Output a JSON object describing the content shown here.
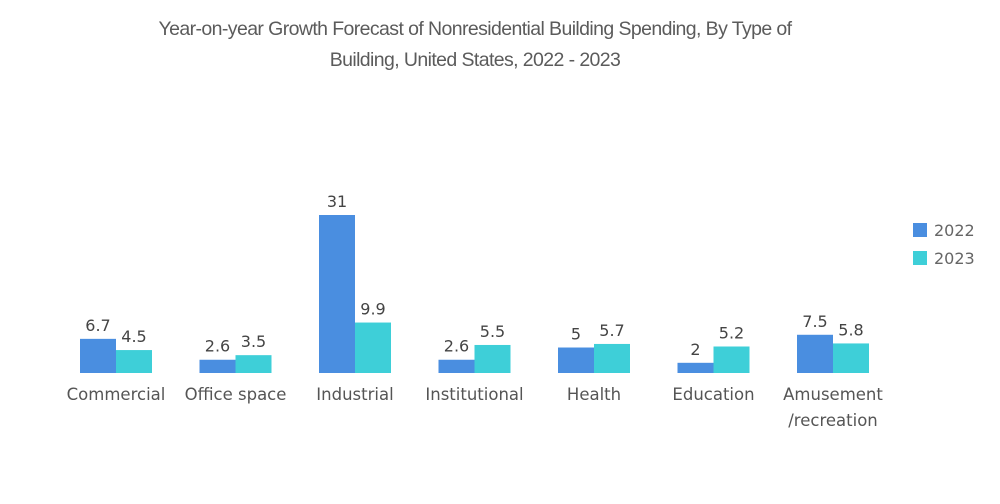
{
  "chart_data": {
    "type": "bar",
    "title": "Year-on-year Growth Forecast of Nonresidential Building Spending, By Type of Building, United States, 2022 - 2023",
    "title_lines": [
      "Year-on-year Growth Forecast of Nonresidential Building Spending, By Type of",
      "Building, United States, 2022 - 2023"
    ],
    "xlabel": "",
    "ylabel": "",
    "ylim": [
      0,
      31
    ],
    "grid": false,
    "legend_position": "right",
    "categories": [
      [
        "Commercial"
      ],
      [
        "Office space"
      ],
      [
        "Industrial"
      ],
      [
        "Institutional"
      ],
      [
        "Health"
      ],
      [
        "Education"
      ],
      [
        "Amusement",
        "/recreation"
      ]
    ],
    "category_names": [
      "Commercial",
      "Office space",
      "Industrial",
      "Institutional",
      "Health",
      "Education",
      "Amusement /recreation"
    ],
    "series": [
      {
        "name": "2022",
        "color": "#4a8ee0",
        "values": [
          6.7,
          2.6,
          31,
          2.6,
          5,
          2,
          7.5
        ]
      },
      {
        "name": "2023",
        "color": "#3ecfd8",
        "values": [
          4.5,
          3.5,
          9.9,
          5.5,
          5.7,
          5.2,
          5.8
        ]
      }
    ]
  }
}
